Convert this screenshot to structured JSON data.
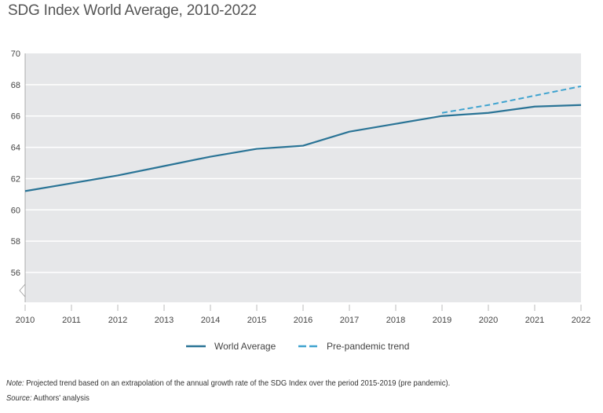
{
  "chart_data": {
    "type": "line",
    "title": "SDG Index World Average, 2010-2022",
    "xlabel": "",
    "ylabel": "",
    "x": [
      2010,
      2011,
      2012,
      2013,
      2014,
      2015,
      2016,
      2017,
      2018,
      2019,
      2020,
      2021,
      2022
    ],
    "ylim": [
      54,
      70
    ],
    "yticks": [
      56,
      58,
      60,
      62,
      64,
      66,
      68,
      70
    ],
    "axis_break": true,
    "grid": true,
    "legend_position": "bottom",
    "series": [
      {
        "name": "World Average",
        "style": "solid",
        "color": "#2a7496",
        "x": [
          2010,
          2011,
          2012,
          2013,
          2014,
          2015,
          2016,
          2017,
          2018,
          2019,
          2020,
          2021,
          2022
        ],
        "values": [
          61.2,
          61.7,
          62.2,
          62.8,
          63.4,
          63.9,
          64.1,
          65.0,
          65.5,
          66.0,
          66.2,
          66.6,
          66.7
        ]
      },
      {
        "name": "Pre-pandemic trend",
        "style": "dashed",
        "color": "#3fa3cf",
        "x": [
          2019,
          2020,
          2021,
          2022
        ],
        "values": [
          66.2,
          66.7,
          67.3,
          67.9
        ]
      }
    ]
  },
  "note_label": "Note:",
  "note_text": " Projected trend based on an extrapolation of the annual growth rate of the SDG Index over the period 2015-2019 (pre pandemic).",
  "source_label": "Source:",
  "source_text": " Authors' analysis",
  "colors": {
    "plot_background": "#e6e7e9",
    "gridline": "#ffffff"
  }
}
